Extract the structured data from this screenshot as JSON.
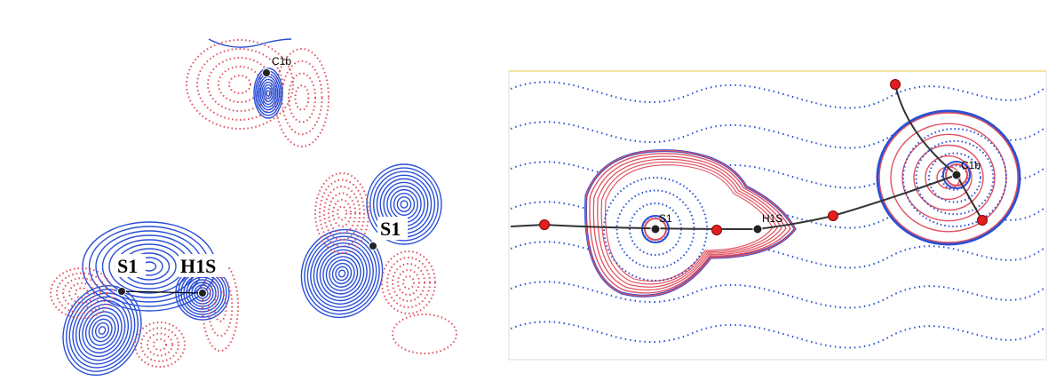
{
  "panels": [
    {
      "labels": [
        "C1b",
        "S1",
        "H1S",
        "S1"
      ]
    },
    {
      "labels": [
        "S1",
        "H1S",
        "C1b"
      ]
    }
  ]
}
